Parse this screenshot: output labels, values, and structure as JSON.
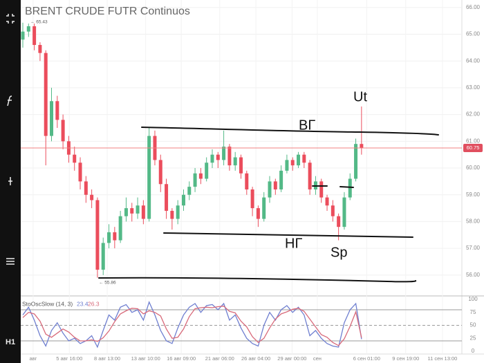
{
  "chart_data": {
    "type": "candlestick",
    "title": "BRENT CRUDE FUTR Continuos",
    "timeframe": "H1",
    "up_color": "#53b987",
    "down_color": "#eb4d5c",
    "xlim": [
      0,
      76
    ],
    "xticks": [
      {
        "value": 1.8,
        "label": "авг"
      },
      {
        "value": 8.1,
        "label": "5 авг 16:00"
      },
      {
        "value": 14.7,
        "label": "8 авг 13:00"
      },
      {
        "value": 21.4,
        "label": "13 авг 10:00"
      },
      {
        "value": 27.6,
        "label": "16 авг 09:00"
      },
      {
        "value": 34.3,
        "label": "21 авг 06:00"
      },
      {
        "value": 40.6,
        "label": "26 авг 04:00"
      },
      {
        "value": 46.9,
        "label": "29 авг 00:00"
      },
      {
        "value": 51.3,
        "label": "сен"
      },
      {
        "value": 59.9,
        "label": "6 сен 01:00"
      },
      {
        "value": 66.7,
        "label": "9 сен 19:00"
      },
      {
        "value": 73.1,
        "label": "11 сен 13:00"
      }
    ],
    "ylim": [
      55.22,
      66.28
    ],
    "yticks": [
      {
        "value": 56,
        "label": "56.00"
      },
      {
        "value": 57,
        "label": "57.00"
      },
      {
        "value": 58,
        "label": "58.00"
      },
      {
        "value": 59,
        "label": "59.00"
      },
      {
        "value": 60,
        "label": "60.00"
      },
      {
        "value": 61,
        "label": "61.00"
      },
      {
        "value": 62,
        "label": "62.00"
      },
      {
        "value": 63,
        "label": "63.00"
      },
      {
        "value": 64,
        "label": "64.00"
      },
      {
        "value": 65,
        "label": "65.00"
      },
      {
        "value": 66,
        "label": "66.00"
      }
    ],
    "last_price": 60.75,
    "last_price_color": "#f08080",
    "high_label": "← 65.43",
    "low_label": "← 55.86",
    "candles": [
      [
        64.8,
        65.43,
        64.5,
        65.1
      ],
      [
        65.1,
        65.4,
        64.9,
        65.3
      ],
      [
        65.3,
        65.4,
        64.4,
        64.6
      ],
      [
        64.6,
        64.7,
        64.0,
        64.3
      ],
      [
        64.3,
        64.4,
        60.1,
        61.2
      ],
      [
        61.2,
        63.0,
        61.0,
        62.5
      ],
      [
        62.5,
        62.7,
        61.5,
        61.8
      ],
      [
        61.8,
        62.0,
        60.7,
        61.0
      ],
      [
        61.0,
        61.2,
        60.2,
        60.5
      ],
      [
        60.5,
        60.8,
        59.9,
        60.2
      ],
      [
        60.2,
        60.4,
        59.2,
        59.5
      ],
      [
        59.5,
        59.7,
        58.7,
        59.0
      ],
      [
        59.0,
        59.2,
        58.5,
        58.8
      ],
      [
        58.8,
        58.9,
        55.9,
        56.2
      ],
      [
        56.2,
        57.4,
        56.0,
        57.2
      ],
      [
        57.2,
        57.9,
        57.0,
        57.6
      ],
      [
        57.6,
        57.8,
        57.0,
        57.3
      ],
      [
        57.3,
        58.4,
        57.2,
        58.2
      ],
      [
        58.2,
        58.9,
        58.0,
        58.5
      ],
      [
        58.5,
        58.7,
        58.0,
        58.3
      ],
      [
        58.3,
        58.9,
        58.1,
        58.6
      ],
      [
        58.6,
        58.8,
        57.9,
        58.1
      ],
      [
        58.1,
        61.5,
        58.0,
        61.2
      ],
      [
        61.2,
        61.4,
        60.1,
        60.3
      ],
      [
        60.3,
        60.5,
        59.1,
        59.4
      ],
      [
        59.4,
        59.6,
        58.1,
        58.4
      ],
      [
        58.4,
        58.5,
        57.7,
        58.1
      ],
      [
        58.1,
        58.8,
        57.9,
        58.6
      ],
      [
        58.6,
        59.2,
        58.4,
        59.0
      ],
      [
        59.0,
        59.5,
        58.8,
        59.3
      ],
      [
        59.3,
        60.0,
        59.1,
        59.8
      ],
      [
        59.8,
        60.0,
        59.4,
        59.6
      ],
      [
        59.6,
        60.4,
        59.5,
        60.2
      ],
      [
        60.2,
        60.7,
        60.0,
        60.5
      ],
      [
        60.5,
        60.6,
        60.0,
        60.3
      ],
      [
        60.3,
        61.4,
        60.1,
        60.8
      ],
      [
        60.8,
        60.9,
        59.9,
        60.1
      ],
      [
        60.1,
        60.6,
        59.9,
        60.4
      ],
      [
        60.4,
        60.5,
        59.6,
        59.8
      ],
      [
        59.8,
        59.9,
        59.0,
        59.2
      ],
      [
        59.2,
        59.3,
        58.2,
        58.5
      ],
      [
        58.5,
        58.6,
        57.8,
        58.1
      ],
      [
        58.1,
        59.1,
        58.0,
        58.9
      ],
      [
        58.9,
        59.7,
        58.7,
        59.5
      ],
      [
        59.5,
        59.6,
        59.0,
        59.2
      ],
      [
        59.2,
        60.1,
        59.1,
        59.9
      ],
      [
        59.9,
        60.5,
        59.8,
        60.3
      ],
      [
        60.3,
        60.4,
        59.9,
        60.1
      ],
      [
        60.1,
        60.6,
        60.0,
        60.5
      ],
      [
        60.5,
        60.6,
        60.0,
        60.2
      ],
      [
        60.2,
        60.3,
        59.0,
        59.2
      ],
      [
        59.2,
        59.7,
        59.0,
        59.5
      ],
      [
        59.5,
        59.6,
        58.7,
        58.9
      ],
      [
        58.9,
        59.0,
        58.4,
        58.6
      ],
      [
        58.6,
        58.8,
        58.0,
        58.2
      ],
      [
        58.2,
        58.3,
        57.3,
        57.8
      ],
      [
        57.8,
        59.1,
        57.7,
        58.9
      ],
      [
        58.9,
        59.8,
        58.8,
        59.6
      ],
      [
        59.6,
        61.1,
        59.5,
        60.9
      ],
      [
        60.9,
        62.3,
        60.5,
        60.75
      ]
    ],
    "annotations": {
      "upper": "ВГ",
      "lower": "НГ",
      "ut": "Ut",
      "sp": "Sp"
    },
    "indicator": {
      "name": "StoOscSlow (14, 3)",
      "ylim": [
        -5.3,
        106.7
      ],
      "yticks": [
        0,
        25,
        50,
        75,
        100
      ],
      "levels": [
        80,
        50,
        20
      ],
      "series": [
        {
          "color": "#6f7fd0",
          "values": [
            70,
            85,
            60,
            30,
            10,
            40,
            55,
            35,
            20,
            25,
            15,
            20,
            30,
            8,
            40,
            70,
            60,
            85,
            90,
            75,
            80,
            60,
            95,
            70,
            40,
            20,
            15,
            45,
            70,
            85,
            92,
            75,
            88,
            90,
            80,
            92,
            60,
            70,
            45,
            25,
            15,
            10,
            50,
            75,
            60,
            80,
            88,
            75,
            85,
            70,
            30,
            40,
            25,
            15,
            10,
            8,
            55,
            80,
            92,
            23.4
          ]
        },
        {
          "color": "#d86a7a",
          "values": [
            65,
            75,
            72,
            58,
            33,
            27,
            35,
            43,
            37,
            27,
            20,
            20,
            22,
            19,
            26,
            39,
            57,
            72,
            78,
            83,
            82,
            72,
            78,
            75,
            68,
            43,
            25,
            27,
            43,
            67,
            82,
            84,
            85,
            84,
            86,
            87,
            77,
            74,
            58,
            47,
            28,
            17,
            25,
            45,
            62,
            72,
            76,
            81,
            83,
            77,
            62,
            47,
            32,
            27,
            17,
            11,
            24,
            48,
            76,
            26.3
          ]
        }
      ]
    }
  }
}
